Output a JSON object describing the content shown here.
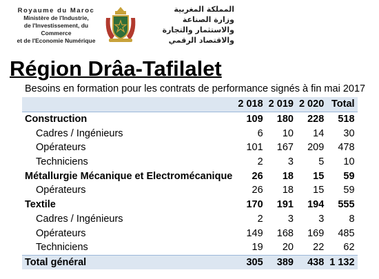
{
  "header": {
    "french": [
      "Royaume du Maroc",
      "Ministère de l'Industrie,",
      "de l'Investissement, du Commerce",
      "et de l'Economie Numérique"
    ],
    "arabic": [
      "المملكة المغربية",
      "وزارة الصناعة",
      "والاستثمار والتجارة",
      "والاقتصاد الرقمي"
    ]
  },
  "title": "Région Drâa-Tafilalet",
  "subtitle": "Besoins en formation pour les contrats de performance signés à fin mai 2017",
  "table": {
    "columns": [
      "2 018",
      "2 019",
      "2 020",
      "Total"
    ],
    "rows": [
      [
        "Construction",
        109,
        180,
        228,
        518
      ],
      [
        "Cadres / Ingénieurs",
        6,
        10,
        14,
        30
      ],
      [
        "Opérateurs",
        101,
        167,
        209,
        478
      ],
      [
        "Techniciens",
        2,
        3,
        5,
        10
      ],
      [
        "Métallurgie Mécanique et Electromécanique",
        26,
        18,
        15,
        59
      ],
      [
        "Opérateurs",
        26,
        18,
        15,
        59
      ],
      [
        "Textile",
        170,
        191,
        194,
        555
      ],
      [
        "Cadres / Ingénieurs",
        2,
        3,
        3,
        8
      ],
      [
        "Opérateurs",
        149,
        168,
        169,
        485
      ],
      [
        "Techniciens",
        19,
        20,
        22,
        62
      ],
      [
        "Total général",
        305,
        389,
        438,
        "1 132"
      ]
    ]
  }
}
